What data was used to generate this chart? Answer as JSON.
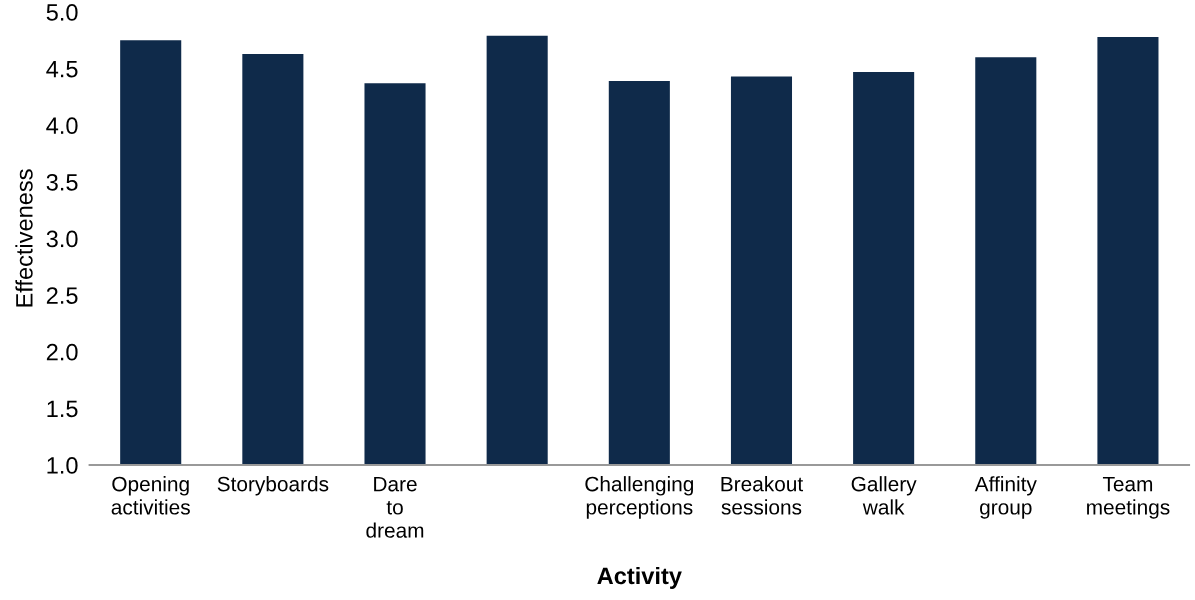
{
  "chart_data": {
    "type": "bar",
    "xlabel": "Activity",
    "ylabel": "Effectiveness",
    "categories": [
      "Opening\nactivities",
      "Storyboards",
      "Dare\nto\ndream",
      null,
      "Challenging\nperceptions",
      "Breakout\nsessions",
      "Gallery\nwalk",
      "Affinity\ngroup",
      "Team\nmeetings"
    ],
    "values": [
      4.75,
      4.63,
      4.37,
      4.79,
      4.39,
      4.43,
      4.47,
      4.6,
      4.78
    ],
    "color": "#0f2a4a",
    "ylim": [
      1.0,
      5.0
    ],
    "yticks": [
      {
        "value": 1.0,
        "label": "1.0"
      },
      {
        "value": 1.5,
        "label": "1.5"
      },
      {
        "value": 2.0,
        "label": "2.0"
      },
      {
        "value": 2.5,
        "label": "2.5"
      },
      {
        "value": 3.0,
        "label": "3.0"
      },
      {
        "value": 3.5,
        "label": "3.5"
      },
      {
        "value": 4.0,
        "label": "4.0"
      },
      {
        "value": 4.5,
        "label": "4.5"
      },
      {
        "value": 5.0,
        "label": "5.0"
      }
    ],
    "grid": false,
    "legend": false
  }
}
